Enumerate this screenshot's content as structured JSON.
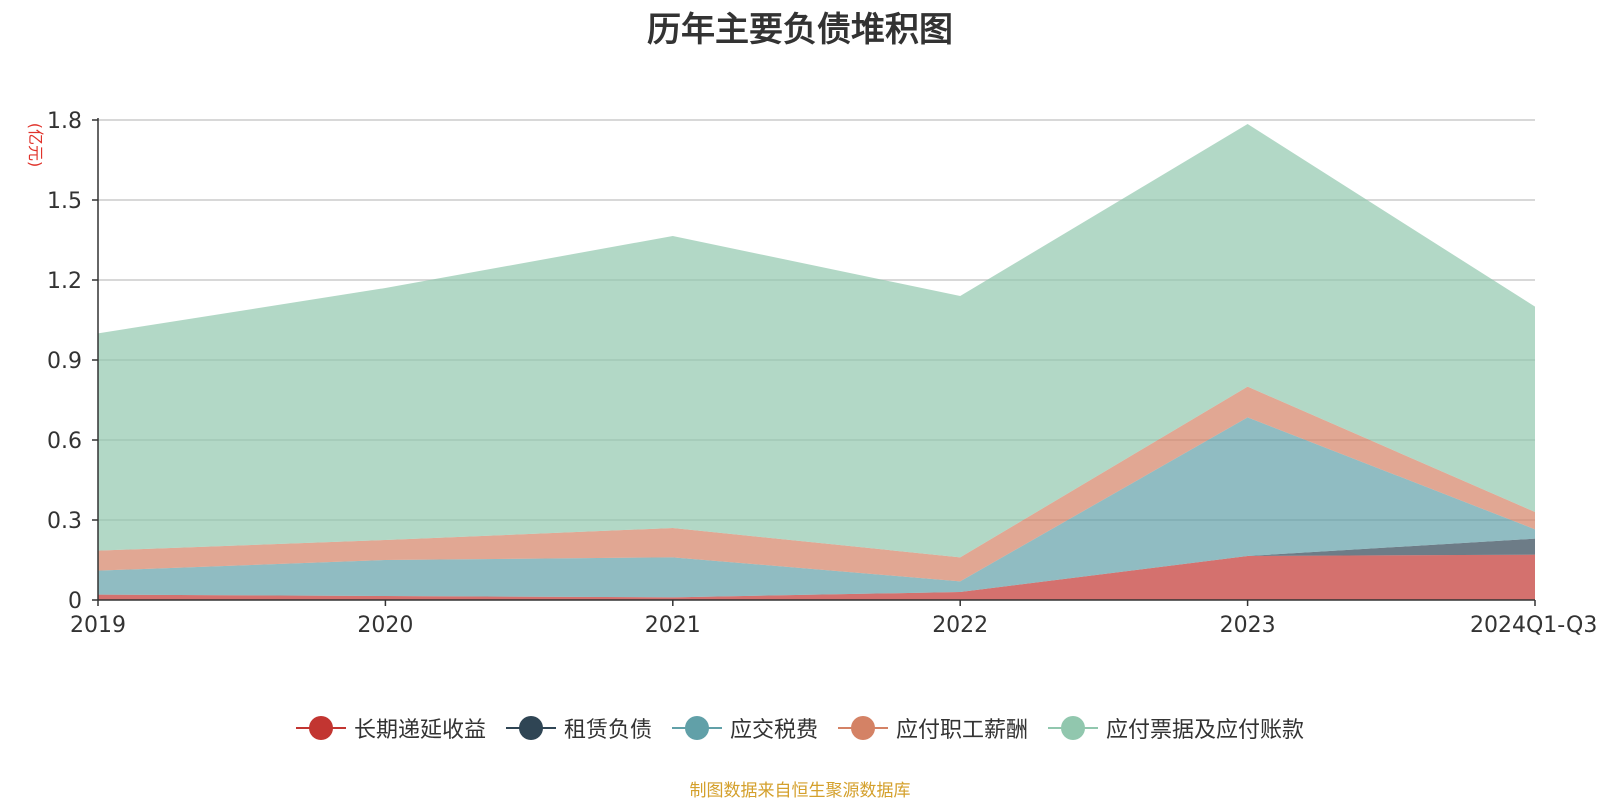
{
  "chart_data": {
    "type": "area",
    "stacked": true,
    "title": "历年主要负债堆积图",
    "ylabel": "(亿元)",
    "categories": [
      "2019",
      "2020",
      "2021",
      "2022",
      "2023",
      "2024Q1-Q3"
    ],
    "ylim": [
      0,
      1.8
    ],
    "yticks": [
      "0",
      "0.3",
      "0.6",
      "0.9",
      "1.2",
      "1.5",
      "1.8"
    ],
    "ytick_values": [
      0,
      0.3,
      0.6,
      0.9,
      1.2,
      1.5,
      1.8
    ],
    "grid": true,
    "legend_position": "bottom",
    "series": [
      {
        "name": "长期递延收益",
        "color": "#c23531",
        "values": [
          0.02,
          0.015,
          0.01,
          0.03,
          0.165,
          0.17
        ]
      },
      {
        "name": "租赁负债",
        "color": "#2f4554",
        "values": [
          0,
          0,
          0,
          0,
          0,
          0.06
        ]
      },
      {
        "name": "应交税费",
        "color": "#61a0a8",
        "values": [
          0.09,
          0.135,
          0.15,
          0.04,
          0.52,
          0.035
        ]
      },
      {
        "name": "应付职工薪酬",
        "color": "#d48265",
        "values": [
          0.075,
          0.075,
          0.11,
          0.09,
          0.115,
          0.065
        ]
      },
      {
        "name": "应付票据及应付账款",
        "color": "#91c7ae",
        "values": [
          0.815,
          0.945,
          1.095,
          0.98,
          0.985,
          0.77
        ]
      }
    ]
  },
  "source_note": "制图数据来自恒生聚源数据库"
}
